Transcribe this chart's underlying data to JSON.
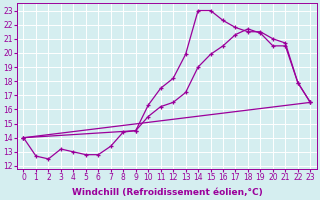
{
  "line1_x": [
    0,
    1,
    2,
    3,
    4,
    5,
    6,
    7,
    8,
    9,
    10,
    11,
    12,
    13,
    14,
    15,
    16,
    17,
    18,
    19,
    20,
    21,
    22,
    23
  ],
  "line1_y": [
    14.0,
    12.7,
    12.5,
    13.2,
    13.0,
    12.8,
    12.8,
    13.4,
    14.4,
    14.5,
    16.3,
    17.5,
    18.2,
    19.9,
    23.0,
    23.0,
    22.3,
    21.8,
    21.5,
    21.5,
    21.0,
    20.7,
    17.9,
    16.5
  ],
  "line2_x": [
    0,
    9,
    10,
    11,
    12,
    13,
    14,
    15,
    16,
    17,
    18,
    19,
    20,
    21,
    22,
    23
  ],
  "line2_y": [
    14.0,
    14.5,
    15.5,
    16.2,
    16.5,
    17.2,
    19.0,
    19.9,
    20.5,
    21.3,
    21.7,
    21.4,
    20.5,
    20.5,
    17.9,
    16.5
  ],
  "line3_x": [
    0,
    23
  ],
  "line3_y": [
    14.0,
    16.5
  ],
  "line_color": "#9b009b",
  "bg_color": "#d5eef0",
  "grid_color": "#ffffff",
  "xlabel": "Windchill (Refroidissement éolien,°C)",
  "ylim": [
    11.8,
    23.5
  ],
  "xlim": [
    -0.5,
    23.5
  ],
  "xlabel_fontsize": 6.5,
  "tick_fontsize": 5.5,
  "marker": "+"
}
